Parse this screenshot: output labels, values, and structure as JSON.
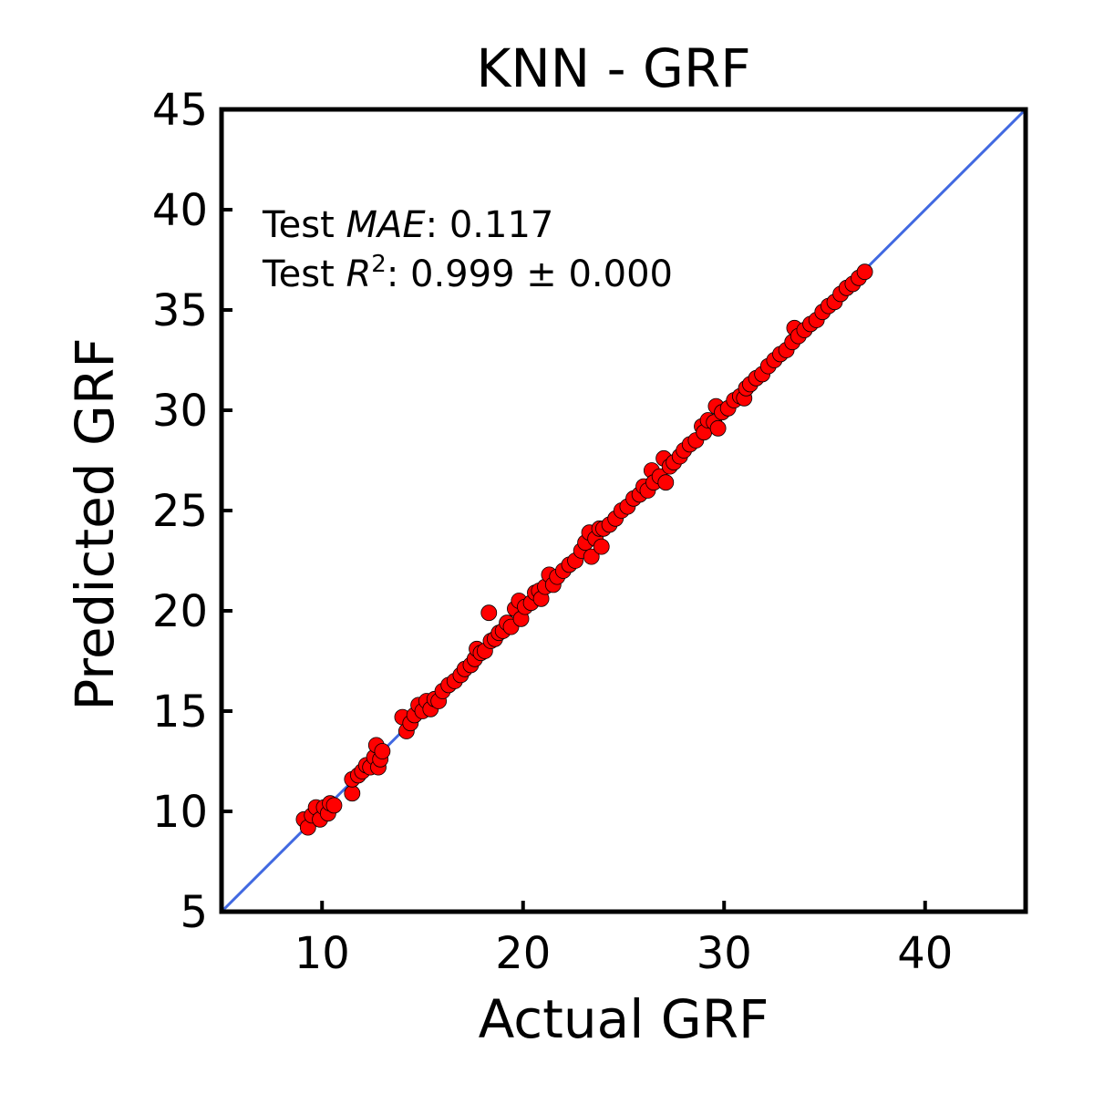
{
  "chart_data": {
    "type": "scatter",
    "title": "KNN - GRF",
    "xlabel": "Actual GRF",
    "ylabel": "Predicted GRF",
    "xlim": [
      5,
      45
    ],
    "ylim": [
      5,
      45
    ],
    "xticks": [
      10,
      20,
      30,
      40
    ],
    "yticks": [
      5,
      10,
      15,
      20,
      25,
      30,
      35,
      40,
      45
    ],
    "grid": false,
    "annotation": {
      "mae_prefix": "Test ",
      "mae_label": "MAE",
      "mae_value": ": 0.117",
      "r2_prefix": "Test ",
      "r2_label": "R",
      "r2_sup": "2",
      "r2_value": ": 0.999 ± 0.000"
    },
    "reference_line": {
      "type": "identity",
      "color": "#4169E1"
    },
    "marker_color": "#FF0000",
    "marker_edge_color": "#000000",
    "points": [
      [
        9.1,
        9.6
      ],
      [
        9.3,
        9.2
      ],
      [
        9.5,
        9.8
      ],
      [
        9.7,
        10.2
      ],
      [
        9.9,
        9.6
      ],
      [
        10.1,
        10.2
      ],
      [
        10.3,
        9.9
      ],
      [
        10.4,
        10.4
      ],
      [
        10.6,
        10.3
      ],
      [
        11.5,
        10.9
      ],
      [
        11.5,
        11.6
      ],
      [
        11.8,
        11.8
      ],
      [
        12.0,
        12.0
      ],
      [
        12.2,
        12.3
      ],
      [
        12.4,
        12.2
      ],
      [
        12.6,
        12.7
      ],
      [
        12.7,
        13.3
      ],
      [
        12.8,
        12.2
      ],
      [
        12.9,
        12.6
      ],
      [
        13.0,
        13.0
      ],
      [
        14.0,
        14.7
      ],
      [
        14.2,
        14.0
      ],
      [
        14.4,
        14.4
      ],
      [
        14.6,
        14.8
      ],
      [
        14.8,
        15.3
      ],
      [
        15.0,
        15.0
      ],
      [
        15.2,
        15.5
      ],
      [
        15.4,
        15.1
      ],
      [
        15.6,
        15.6
      ],
      [
        15.8,
        15.5
      ],
      [
        16.0,
        16.0
      ],
      [
        16.3,
        16.3
      ],
      [
        16.6,
        16.5
      ],
      [
        16.9,
        16.8
      ],
      [
        17.1,
        17.1
      ],
      [
        17.4,
        17.3
      ],
      [
        17.6,
        17.6
      ],
      [
        17.7,
        18.1
      ],
      [
        17.9,
        17.9
      ],
      [
        18.1,
        18.0
      ],
      [
        18.3,
        19.9
      ],
      [
        18.4,
        18.5
      ],
      [
        18.6,
        18.6
      ],
      [
        18.8,
        18.9
      ],
      [
        19.0,
        19.0
      ],
      [
        19.2,
        19.4
      ],
      [
        19.4,
        19.2
      ],
      [
        19.6,
        20.1
      ],
      [
        19.8,
        20.5
      ],
      [
        19.9,
        19.6
      ],
      [
        20.1,
        20.2
      ],
      [
        20.4,
        20.4
      ],
      [
        20.6,
        20.9
      ],
      [
        20.8,
        21.0
      ],
      [
        20.9,
        20.6
      ],
      [
        21.1,
        21.2
      ],
      [
        21.3,
        21.8
      ],
      [
        21.5,
        21.3
      ],
      [
        21.7,
        21.7
      ],
      [
        22.0,
        22.0
      ],
      [
        22.3,
        22.3
      ],
      [
        22.6,
        22.5
      ],
      [
        22.9,
        23.0
      ],
      [
        23.1,
        23.4
      ],
      [
        23.3,
        23.9
      ],
      [
        23.4,
        22.7
      ],
      [
        23.6,
        23.6
      ],
      [
        23.8,
        24.1
      ],
      [
        23.9,
        23.2
      ],
      [
        24.0,
        24.1
      ],
      [
        24.3,
        24.3
      ],
      [
        24.6,
        24.6
      ],
      [
        24.9,
        25.0
      ],
      [
        25.2,
        25.2
      ],
      [
        25.5,
        25.6
      ],
      [
        25.8,
        25.8
      ],
      [
        26.0,
        26.2
      ],
      [
        26.2,
        26.0
      ],
      [
        26.4,
        27.0
      ],
      [
        26.5,
        26.4
      ],
      [
        26.8,
        26.7
      ],
      [
        27.0,
        27.6
      ],
      [
        27.1,
        26.4
      ],
      [
        27.3,
        27.2
      ],
      [
        27.5,
        27.4
      ],
      [
        27.8,
        27.7
      ],
      [
        28.0,
        28.0
      ],
      [
        28.3,
        28.3
      ],
      [
        28.6,
        28.5
      ],
      [
        28.9,
        29.2
      ],
      [
        29.0,
        28.9
      ],
      [
        29.2,
        29.5
      ],
      [
        29.5,
        29.4
      ],
      [
        29.6,
        30.2
      ],
      [
        29.7,
        29.1
      ],
      [
        29.9,
        29.9
      ],
      [
        30.2,
        30.1
      ],
      [
        30.5,
        30.5
      ],
      [
        30.8,
        30.7
      ],
      [
        31.0,
        30.6
      ],
      [
        31.1,
        31.1
      ],
      [
        31.3,
        31.3
      ],
      [
        31.6,
        31.6
      ],
      [
        31.9,
        31.8
      ],
      [
        32.2,
        32.2
      ],
      [
        32.5,
        32.5
      ],
      [
        32.8,
        32.8
      ],
      [
        33.1,
        33.0
      ],
      [
        33.4,
        33.4
      ],
      [
        33.5,
        34.1
      ],
      [
        33.7,
        33.7
      ],
      [
        34.0,
        34.0
      ],
      [
        34.3,
        34.3
      ],
      [
        34.6,
        34.5
      ],
      [
        34.9,
        34.9
      ],
      [
        35.2,
        35.2
      ],
      [
        35.5,
        35.4
      ],
      [
        35.8,
        35.8
      ],
      [
        36.1,
        36.1
      ],
      [
        36.4,
        36.3
      ],
      [
        36.7,
        36.6
      ],
      [
        37.0,
        36.9
      ]
    ]
  }
}
